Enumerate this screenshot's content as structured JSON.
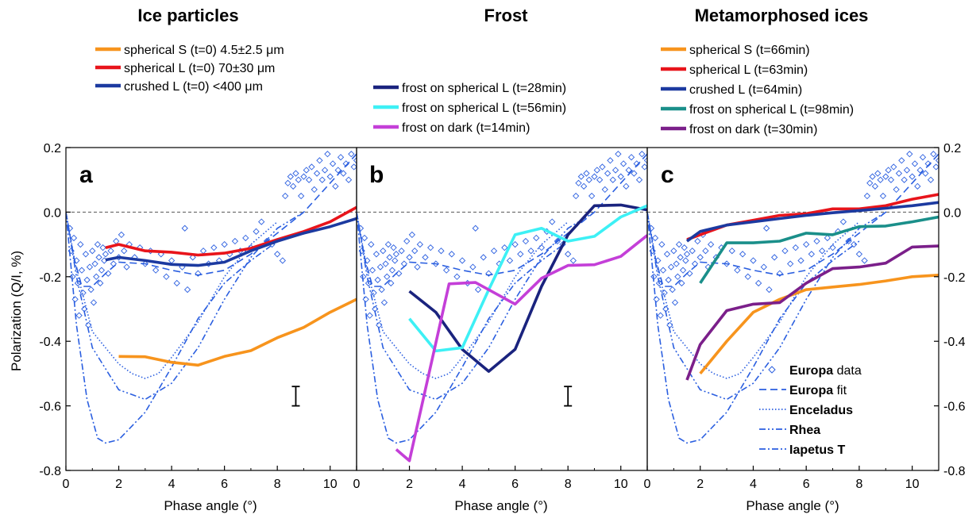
{
  "chart_data": [
    {
      "panel_label": "a",
      "title": "Ice particles",
      "type": "line",
      "xlabel": "Phase angle (°)",
      "ylabel": "Polarization (Q/I, %)",
      "xlim": [
        0,
        11
      ],
      "ylim": [
        -0.8,
        0.2
      ],
      "x_ticks": [
        "0",
        "2",
        "4",
        "6",
        "8",
        "10"
      ],
      "y_ticks": [
        "0.2",
        "0.0",
        "-0.2",
        "-0.4",
        "-0.6",
        "-0.8"
      ],
      "error_bar": {
        "x": 8.7,
        "y_low": -0.6,
        "y_high": -0.54
      },
      "series": [
        {
          "name": "spherical S (t=0)  4.5±2.5 μm",
          "color": "#f7941d",
          "points": [
            [
              2,
              -0.447
            ],
            [
              3,
              -0.448
            ],
            [
              4,
              -0.465
            ],
            [
              5,
              -0.474
            ],
            [
              6,
              -0.447
            ],
            [
              7,
              -0.429
            ],
            [
              8,
              -0.389
            ],
            [
              9,
              -0.357
            ],
            [
              10,
              -0.31
            ],
            [
              11,
              -0.27
            ]
          ]
        },
        {
          "name": "spherical L (t=0)  70±30 μm",
          "color": "#e8141b",
          "points": [
            [
              1.5,
              -0.11
            ],
            [
              2,
              -0.1
            ],
            [
              3,
              -0.12
            ],
            [
              4,
              -0.124
            ],
            [
              5,
              -0.133
            ],
            [
              6,
              -0.127
            ],
            [
              7,
              -0.112
            ],
            [
              8,
              -0.085
            ],
            [
              9,
              -0.06
            ],
            [
              10,
              -0.03
            ],
            [
              11,
              0.015
            ]
          ]
        },
        {
          "name": "crushed L (t=0)   <400 μm",
          "color": "#1c3aa0",
          "points": [
            [
              1.5,
              -0.148
            ],
            [
              2,
              -0.14
            ],
            [
              3,
              -0.15
            ],
            [
              4,
              -0.162
            ],
            [
              5,
              -0.165
            ],
            [
              6,
              -0.155
            ],
            [
              7,
              -0.12
            ],
            [
              8,
              -0.09
            ],
            [
              9,
              -0.065
            ],
            [
              10,
              -0.045
            ],
            [
              11,
              -0.02
            ]
          ]
        }
      ]
    },
    {
      "panel_label": "b",
      "title": "Frost",
      "type": "line",
      "xlabel": "Phase angle (°)",
      "xlim": [
        0,
        11
      ],
      "ylim": [
        -0.8,
        0.2
      ],
      "x_ticks": [
        "0",
        "2",
        "4",
        "6",
        "8",
        "10"
      ],
      "error_bar": {
        "x": 8.0,
        "y_low": -0.6,
        "y_high": -0.54
      },
      "series": [
        {
          "name": "frost on spherical L (t=28min)",
          "color": "#1a237e",
          "points": [
            [
              2,
              -0.245
            ],
            [
              3,
              -0.31
            ],
            [
              4,
              -0.425
            ],
            [
              5,
              -0.493
            ],
            [
              6,
              -0.425
            ],
            [
              7,
              -0.23
            ],
            [
              8,
              -0.07
            ],
            [
              9,
              0.02
            ],
            [
              10,
              0.022
            ],
            [
              11,
              0.007
            ]
          ]
        },
        {
          "name": "frost on spherical L (t=56min)",
          "color": "#3df0f5",
          "points": [
            [
              2,
              -0.33
            ],
            [
              3,
              -0.43
            ],
            [
              4,
              -0.42
            ],
            [
              5,
              -0.24
            ],
            [
              6,
              -0.07
            ],
            [
              7,
              -0.05
            ],
            [
              8,
              -0.09
            ],
            [
              9,
              -0.075
            ],
            [
              10,
              -0.015
            ],
            [
              11,
              0.02
            ]
          ]
        },
        {
          "name": "frost on dark (t=14min)",
          "color": "#c43fd8",
          "points": [
            [
              1.5,
              -0.735
            ],
            [
              2,
              -0.77
            ],
            [
              3.5,
              -0.222
            ],
            [
              4.5,
              -0.218
            ],
            [
              6,
              -0.285
            ],
            [
              7,
              -0.205
            ],
            [
              8,
              -0.165
            ],
            [
              9,
              -0.163
            ],
            [
              10,
              -0.137
            ],
            [
              11,
              -0.072
            ]
          ]
        }
      ]
    },
    {
      "panel_label": "c",
      "title": "Metamorphosed ices",
      "type": "line",
      "xlabel": "Phase angle (°)",
      "xlim": [
        0,
        11
      ],
      "ylim": [
        -0.8,
        0.2
      ],
      "x_ticks": [
        "0",
        "2",
        "4",
        "6",
        "8",
        "10"
      ],
      "y_ticks": [
        "0.2",
        "0.0",
        "-0.2",
        "-0.4",
        "-0.6",
        "-0.8"
      ],
      "series": [
        {
          "name": "spherical S (t=66min)",
          "color": "#f7941d",
          "points": [
            [
              2,
              -0.5
            ],
            [
              3,
              -0.4
            ],
            [
              4,
              -0.31
            ],
            [
              5,
              -0.27
            ],
            [
              6,
              -0.24
            ],
            [
              7,
              -0.232
            ],
            [
              8,
              -0.224
            ],
            [
              9,
              -0.213
            ],
            [
              10,
              -0.2
            ],
            [
              11,
              -0.195
            ]
          ]
        },
        {
          "name": "spherical L (t=63min)",
          "color": "#e8141b",
          "points": [
            [
              1.5,
              -0.085
            ],
            [
              2,
              -0.07
            ],
            [
              3,
              -0.04
            ],
            [
              4,
              -0.025
            ],
            [
              5,
              -0.01
            ],
            [
              6,
              -0.005
            ],
            [
              7,
              0.01
            ],
            [
              8,
              0.01
            ],
            [
              9,
              0.02
            ],
            [
              10,
              0.04
            ],
            [
              11,
              0.055
            ]
          ]
        },
        {
          "name": "crushed L (t=64min)",
          "color": "#1c3aa0",
          "points": [
            [
              1.5,
              -0.09
            ],
            [
              2,
              -0.06
            ],
            [
              3,
              -0.04
            ],
            [
              4,
              -0.03
            ],
            [
              5,
              -0.02
            ],
            [
              6,
              -0.01
            ],
            [
              7,
              -0.002
            ],
            [
              8,
              0.005
            ],
            [
              9,
              0.012
            ],
            [
              10,
              0.02
            ],
            [
              11,
              0.03
            ]
          ]
        },
        {
          "name": "frost on spherical L (t=98min)",
          "color": "#1a8f8a",
          "points": [
            [
              2,
              -0.22
            ],
            [
              3,
              -0.095
            ],
            [
              4,
              -0.095
            ],
            [
              5,
              -0.09
            ],
            [
              6,
              -0.065
            ],
            [
              7,
              -0.07
            ],
            [
              8,
              -0.045
            ],
            [
              9,
              -0.043
            ],
            [
              10,
              -0.03
            ],
            [
              11,
              -0.015
            ]
          ]
        },
        {
          "name": "frost on dark (t=30min)",
          "color": "#7b1f8a",
          "points": [
            [
              1.5,
              -0.52
            ],
            [
              2,
              -0.41
            ],
            [
              3,
              -0.305
            ],
            [
              4,
              -0.285
            ],
            [
              5,
              -0.28
            ],
            [
              6,
              -0.22
            ],
            [
              7,
              -0.175
            ],
            [
              8,
              -0.17
            ],
            [
              9,
              -0.158
            ],
            [
              10,
              -0.108
            ],
            [
              11,
              -0.105
            ]
          ]
        }
      ]
    }
  ],
  "reference_legend": [
    {
      "bold": "Europa",
      "rest": " data"
    },
    {
      "bold": "Europa",
      "rest": " fit"
    },
    {
      "bold": "Enceladus",
      "rest": ""
    },
    {
      "bold": "Rhea",
      "rest": ""
    },
    {
      "bold": "Iapetus T",
      "rest": ""
    }
  ],
  "reference_curves": {
    "color": "#2b5fe0",
    "europa_fit": [
      [
        0,
        0.0
      ],
      [
        0.3,
        -0.14
      ],
      [
        0.6,
        -0.23
      ],
      [
        1,
        -0.23
      ],
      [
        1.5,
        -0.19
      ],
      [
        2,
        -0.155
      ],
      [
        3,
        -0.16
      ],
      [
        4,
        -0.18
      ],
      [
        5,
        -0.195
      ],
      [
        6,
        -0.18
      ],
      [
        7,
        -0.13
      ],
      [
        8,
        -0.065
      ],
      [
        9,
        0.0
      ],
      [
        10,
        0.09
      ],
      [
        11,
        0.18
      ]
    ],
    "enceladus": [
      [
        0,
        0.0
      ],
      [
        0.4,
        -0.18
      ],
      [
        1,
        -0.37
      ],
      [
        2,
        -0.47
      ],
      [
        2.5,
        -0.5
      ],
      [
        3,
        -0.515
      ],
      [
        3.5,
        -0.5
      ],
      [
        4,
        -0.45
      ],
      [
        5,
        -0.34
      ],
      [
        6,
        -0.2
      ],
      [
        7,
        -0.1
      ],
      [
        8,
        -0.03
      ]
    ],
    "rhea": [
      [
        0,
        0.0
      ],
      [
        0.4,
        -0.2
      ],
      [
        1,
        -0.42
      ],
      [
        2,
        -0.55
      ],
      [
        3,
        -0.58
      ],
      [
        4,
        -0.53
      ],
      [
        5,
        -0.42
      ],
      [
        6,
        -0.27
      ],
      [
        7,
        -0.14
      ],
      [
        8,
        -0.05
      ],
      [
        9,
        0.0
      ]
    ],
    "iapetus_t": [
      [
        0,
        0.0
      ],
      [
        0.4,
        -0.35
      ],
      [
        0.8,
        -0.58
      ],
      [
        1.2,
        -0.7
      ],
      [
        1.5,
        -0.715
      ],
      [
        2,
        -0.705
      ],
      [
        3,
        -0.62
      ],
      [
        4,
        -0.48
      ],
      [
        5,
        -0.33
      ],
      [
        6,
        -0.22
      ],
      [
        7,
        -0.15
      ],
      [
        8,
        -0.09
      ]
    ],
    "europa_data": [
      [
        0.15,
        -0.05
      ],
      [
        0.2,
        -0.12
      ],
      [
        0.25,
        -0.2
      ],
      [
        0.3,
        -0.08
      ],
      [
        0.35,
        -0.27
      ],
      [
        0.4,
        -0.15
      ],
      [
        0.45,
        -0.22
      ],
      [
        0.5,
        -0.32
      ],
      [
        0.55,
        -0.1
      ],
      [
        0.6,
        -0.18
      ],
      [
        0.65,
        -0.25
      ],
      [
        0.7,
        -0.3
      ],
      [
        0.75,
        -0.13
      ],
      [
        0.8,
        -0.21
      ],
      [
        0.85,
        -0.35
      ],
      [
        0.9,
        -0.17
      ],
      [
        0.95,
        -0.24
      ],
      [
        1.0,
        -0.12
      ],
      [
        1.05,
        -0.28
      ],
      [
        1.1,
        -0.16
      ],
      [
        1.15,
        -0.2
      ],
      [
        1.2,
        -0.1
      ],
      [
        1.25,
        -0.14
      ],
      [
        1.3,
        -0.22
      ],
      [
        1.35,
        -0.18
      ],
      [
        1.4,
        -0.11
      ],
      [
        1.45,
        -0.15
      ],
      [
        1.5,
        -0.13
      ],
      [
        1.6,
        -0.19
      ],
      [
        1.7,
        -0.12
      ],
      [
        1.8,
        -0.16
      ],
      [
        1.9,
        -0.09
      ],
      [
        2.0,
        -0.14
      ],
      [
        2.1,
        -0.07
      ],
      [
        2.2,
        -0.12
      ],
      [
        2.3,
        -0.17
      ],
      [
        2.4,
        -0.1
      ],
      [
        2.6,
        -0.14
      ],
      [
        2.8,
        -0.11
      ],
      [
        3.0,
        -0.16
      ],
      [
        3.2,
        -0.12
      ],
      [
        3.4,
        -0.18
      ],
      [
        3.6,
        -0.13
      ],
      [
        3.8,
        -0.2
      ],
      [
        4.0,
        -0.15
      ],
      [
        4.2,
        -0.22
      ],
      [
        4.4,
        -0.17
      ],
      [
        4.5,
        -0.05
      ],
      [
        4.6,
        -0.24
      ],
      [
        4.8,
        -0.14
      ],
      [
        5.0,
        -0.19
      ],
      [
        5.2,
        -0.12
      ],
      [
        5.4,
        -0.16
      ],
      [
        5.6,
        -0.11
      ],
      [
        5.8,
        -0.15
      ],
      [
        6.0,
        -0.1
      ],
      [
        6.2,
        -0.13
      ],
      [
        6.4,
        -0.09
      ],
      [
        6.6,
        -0.12
      ],
      [
        6.8,
        -0.08
      ],
      [
        7.0,
        -0.11
      ],
      [
        7.2,
        -0.06
      ],
      [
        7.4,
        -0.03
      ],
      [
        7.6,
        -0.09
      ],
      [
        7.8,
        -0.1
      ],
      [
        8.0,
        -0.13
      ],
      [
        8.2,
        -0.15
      ],
      [
        8.3,
        0.05
      ],
      [
        8.4,
        0.09
      ],
      [
        8.5,
        0.11
      ],
      [
        8.6,
        0.08
      ],
      [
        8.7,
        0.12
      ],
      [
        8.8,
        0.1
      ],
      [
        8.9,
        0.05
      ],
      [
        9.0,
        0.11
      ],
      [
        9.1,
        0.13
      ],
      [
        9.2,
        0.1
      ],
      [
        9.3,
        0.14
      ],
      [
        9.4,
        0.07
      ],
      [
        9.5,
        0.12
      ],
      [
        9.6,
        0.16
      ],
      [
        9.7,
        0.1
      ],
      [
        9.8,
        0.13
      ],
      [
        9.9,
        0.18
      ],
      [
        10.0,
        0.11
      ],
      [
        10.1,
        0.15
      ],
      [
        10.2,
        0.08
      ],
      [
        10.3,
        0.13
      ],
      [
        10.4,
        0.17
      ],
      [
        10.5,
        0.12
      ],
      [
        10.6,
        0.15
      ],
      [
        10.7,
        0.1
      ],
      [
        10.8,
        0.18
      ],
      [
        10.9,
        0.14
      ],
      [
        11.0,
        0.16
      ]
    ]
  }
}
